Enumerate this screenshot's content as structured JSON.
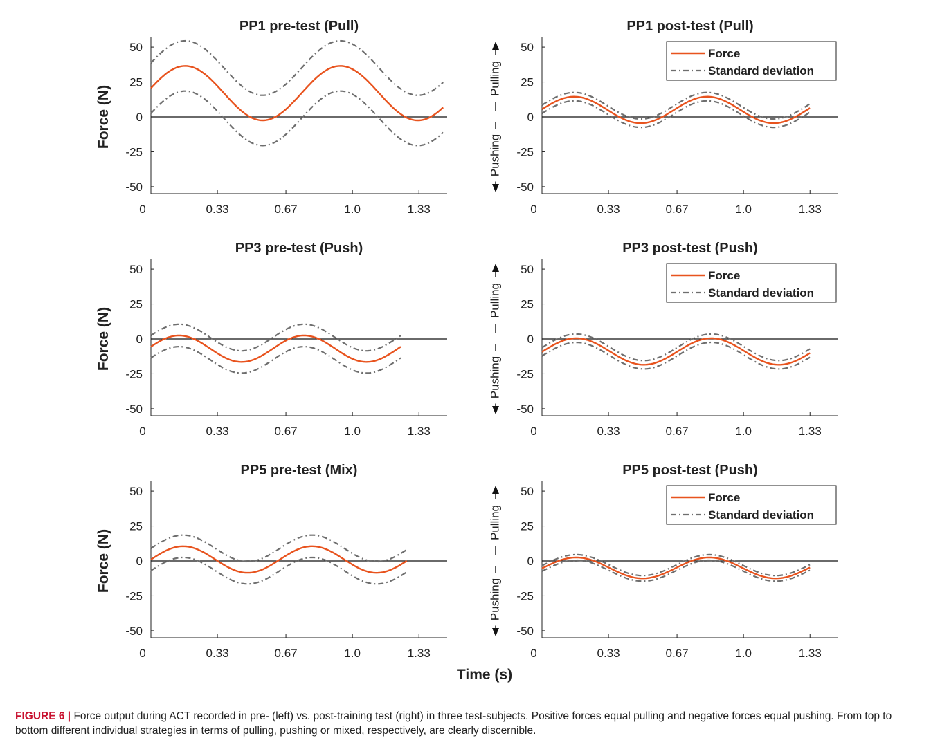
{
  "caption": {
    "label": "FIGURE 6 |",
    "text": " Force output during ACT recorded in pre- (left) vs. post-training test (right) in three test-subjects. Positive forces equal pulling and negative forces equal pushing. From top to bottom different individual strategies in terms of pulling, pushing or mixed, respectively, are clearly discernible."
  },
  "shared": {
    "xlabel": "Time (s)",
    "left_ylabel": "Force (N)",
    "pulling_label": "Pulling",
    "pushing_label": "Pushing",
    "x_ticks": [
      0,
      0.33,
      0.67,
      1.0,
      1.33
    ],
    "x_tick_labels": [
      "0",
      "0.33",
      "0.67",
      "1.0",
      "1.33"
    ],
    "y_ticks": [
      -50,
      -25,
      0,
      25,
      50
    ],
    "y_tick_labels": [
      "-50",
      "-25",
      "0",
      "25",
      "50"
    ],
    "legend": [
      "Force",
      "Standard deviation"
    ],
    "colors": {
      "force": "#e8531e",
      "sd": "#6e6e6e",
      "axis": "#222222",
      "zero": "#111111"
    }
  },
  "chart_data": [
    {
      "type": "line",
      "title": "PP1 pre-test (Pull)",
      "xlabel": "",
      "ylabel": "Force (N)",
      "xlim": [
        0,
        1.47
      ],
      "ylim": [
        -55,
        55
      ],
      "legend": false,
      "direction_arrows": false,
      "x_end": 1.45,
      "series": [
        {
          "name": "Force",
          "mean": 17,
          "amp": 19.5,
          "period": 0.77,
          "phase_peak": 0.17
        },
        {
          "name": "Standard deviation",
          "role": "sd",
          "offset": 18
        }
      ]
    },
    {
      "type": "line",
      "title": "PP1 post-test (Pull)",
      "xlabel": "",
      "ylabel": "",
      "xlim": [
        0,
        1.47
      ],
      "ylim": [
        -55,
        55
      ],
      "legend": true,
      "legend_position": "top-right",
      "direction_arrows": true,
      "x_end": 1.33,
      "series": [
        {
          "name": "Force",
          "mean": 5,
          "amp": 9.5,
          "period": 0.66,
          "phase_peak": 0.16
        },
        {
          "name": "Standard deviation",
          "role": "sd",
          "offset": 3
        }
      ]
    },
    {
      "type": "line",
      "title": "PP3 pre-test (Push)",
      "xlabel": "",
      "ylabel": "Force (N)",
      "xlim": [
        0,
        1.47
      ],
      "ylim": [
        -55,
        55
      ],
      "legend": false,
      "direction_arrows": false,
      "x_end": 1.24,
      "series": [
        {
          "name": "Force",
          "mean": -7,
          "amp": 9.5,
          "period": 0.62,
          "phase_peak": 0.14
        },
        {
          "name": "Standard deviation",
          "role": "sd",
          "offset": 8
        }
      ]
    },
    {
      "type": "line",
      "title": "PP3 post-test (Push)",
      "xlabel": "",
      "ylabel": "",
      "xlim": [
        0,
        1.47
      ],
      "ylim": [
        -55,
        55
      ],
      "legend": true,
      "legend_position": "top-right",
      "direction_arrows": true,
      "x_end": 1.33,
      "series": [
        {
          "name": "Force",
          "mean": -9,
          "amp": 9.5,
          "period": 0.67,
          "phase_peak": 0.17
        },
        {
          "name": "Standard deviation",
          "role": "sd",
          "offset": 3
        }
      ]
    },
    {
      "type": "line",
      "title": "PP5 pre-test (Mix)",
      "xlabel": "",
      "ylabel": "Force (N)",
      "xlim": [
        0,
        1.47
      ],
      "ylim": [
        -55,
        55
      ],
      "legend": false,
      "direction_arrows": false,
      "x_end": 1.27,
      "series": [
        {
          "name": "Force",
          "mean": 1,
          "amp": 9.5,
          "period": 0.64,
          "phase_peak": 0.16
        },
        {
          "name": "Standard deviation",
          "role": "sd",
          "offset": 8
        }
      ]
    },
    {
      "type": "line",
      "title": "PP5 post-test (Push)",
      "xlabel": "",
      "ylabel": "",
      "xlim": [
        0,
        1.47
      ],
      "ylim": [
        -55,
        55
      ],
      "legend": true,
      "legend_position": "top-right",
      "direction_arrows": true,
      "x_end": 1.33,
      "series": [
        {
          "name": "Force",
          "mean": -5,
          "amp": 7.5,
          "period": 0.66,
          "phase_peak": 0.17
        },
        {
          "name": "Standard deviation",
          "role": "sd",
          "offset": 2
        }
      ]
    }
  ]
}
